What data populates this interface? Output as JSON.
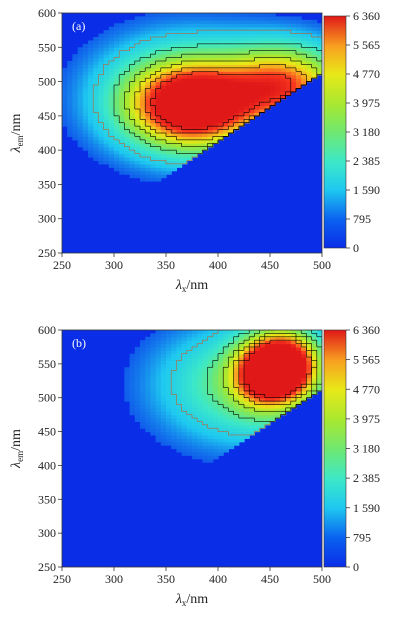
{
  "chart_data": [
    {
      "type": "heatmap",
      "panel_label": "(a)",
      "xlabel": {
        "symbol": "λ",
        "sub": "x",
        "unit": "/nm"
      },
      "ylabel": {
        "symbol": "λ",
        "sub": "em",
        "unit": "/nm"
      },
      "xlim": [
        250,
        500
      ],
      "ylim": [
        250,
        600
      ],
      "x_ticks": [
        "250",
        "300",
        "350",
        "400",
        "450",
        "500"
      ],
      "y_ticks": [
        "250",
        "300",
        "350",
        "400",
        "450",
        "500",
        "550",
        "600"
      ],
      "colorbar": {
        "range": [
          0,
          6360
        ],
        "ticks": [
          "0",
          "795",
          "1 590",
          "2 385",
          "3 180",
          "3 975",
          "4 770",
          "5 565",
          "6 360"
        ]
      },
      "peaks": [
        {
          "ex": 375,
          "em": 465,
          "value": 6200
        },
        {
          "ex": 465,
          "em": 495,
          "value": 5000
        }
      ]
    },
    {
      "type": "heatmap",
      "panel_label": "(b)",
      "xlabel": {
        "symbol": "λ",
        "sub": "x",
        "unit": "/nm"
      },
      "ylabel": {
        "symbol": "λ",
        "sub": "em",
        "unit": "/nm"
      },
      "xlim": [
        250,
        500
      ],
      "ylim": [
        250,
        600
      ],
      "x_ticks": [
        "250",
        "300",
        "350",
        "400",
        "450",
        "500"
      ],
      "y_ticks": [
        "250",
        "300",
        "350",
        "400",
        "450",
        "500",
        "550",
        "600"
      ],
      "colorbar": {
        "range": [
          0,
          6360
        ],
        "ticks": [
          "0",
          "795",
          "1 590",
          "2 385",
          "3 180",
          "3 975",
          "4 770",
          "5 565",
          "6 360"
        ]
      },
      "peaks": [
        {
          "ex": 465,
          "em": 550,
          "value": 6300
        },
        {
          "ex": 445,
          "em": 535,
          "value": 4700
        }
      ]
    }
  ],
  "colors": {
    "background_low": "#0a2de8",
    "contour": "#000000",
    "outer_contour": "#c06030",
    "colormap": [
      "#0a2de8",
      "#1ec8f0",
      "#3ce8c8",
      "#70e870",
      "#a8e830",
      "#e8e818",
      "#f8a020",
      "#f83820",
      "#e01818"
    ]
  }
}
